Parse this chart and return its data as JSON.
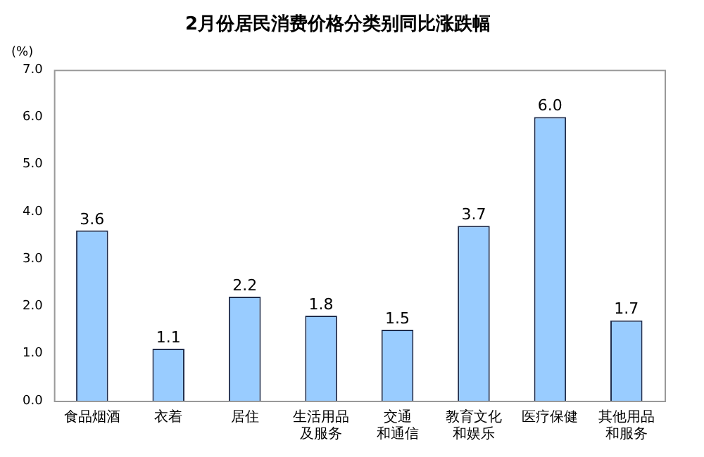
{
  "chart_data": {
    "type": "bar",
    "title": "2月份居民消费价格分类别同比涨跌幅",
    "ylabel": "(%)",
    "categories": [
      "食品烟酒",
      "衣着",
      "居住",
      "生活用品及服务",
      "交通和通信",
      "教育文化和娱乐",
      "医疗保健",
      "其他用品和服务"
    ],
    "values": [
      3.6,
      1.1,
      2.2,
      1.8,
      1.5,
      3.7,
      6,
      1.7
    ],
    "value_labels": [
      "3.6",
      "1.1",
      "2.2",
      "1.8",
      "1.5",
      "3.7",
      "6.0",
      "1.7"
    ],
    "color": "#99ccff",
    "ylim": [
      0,
      7
    ],
    "yticks": [
      {
        "value": 0,
        "label": "0.0"
      },
      {
        "value": 1,
        "label": "1.0"
      },
      {
        "value": 2,
        "label": "2.0"
      },
      {
        "value": 3,
        "label": "3.0"
      },
      {
        "value": 4,
        "label": "4.0"
      },
      {
        "value": 5,
        "label": "5.0"
      },
      {
        "value": 6,
        "label": "6.0"
      },
      {
        "value": 7,
        "label": "7.0"
      }
    ],
    "grid": false,
    "legend": false
  }
}
